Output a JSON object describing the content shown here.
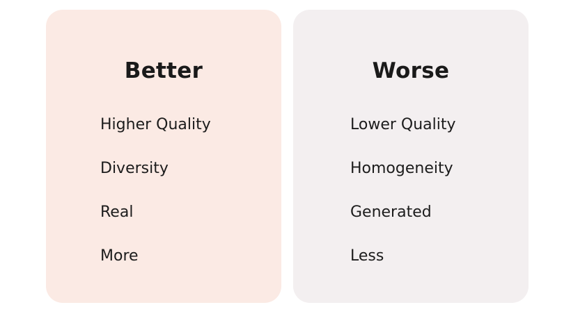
{
  "better": {
    "title": "Better",
    "items": [
      "Higher Quality",
      "Diversity",
      "Real",
      "More"
    ]
  },
  "worse": {
    "title": "Worse",
    "items": [
      "Lower Quality",
      "Homogeneity",
      "Generated",
      "Less"
    ]
  }
}
